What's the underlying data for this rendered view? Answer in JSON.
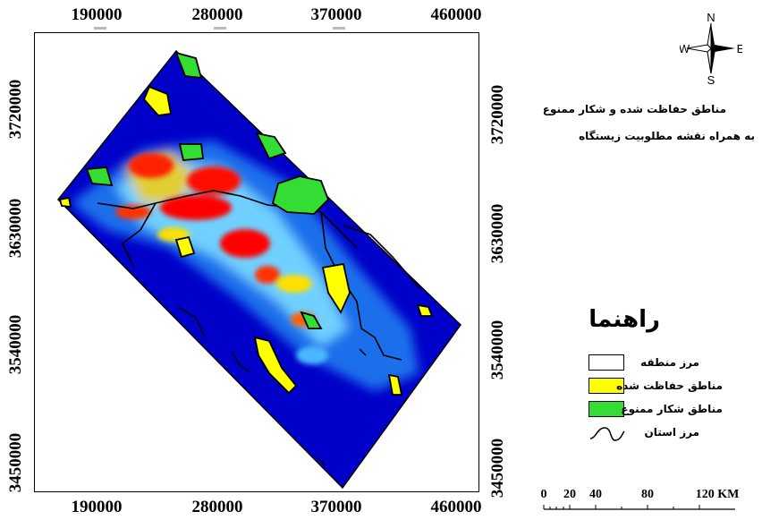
{
  "axes": {
    "x_ticks": [
      "190000",
      "280000",
      "370000",
      "460000"
    ],
    "y_ticks": [
      "3720000",
      "3630000",
      "3540000",
      "3450000"
    ]
  },
  "map": {
    "type": "raster habitat suitability map",
    "raster_colors": [
      "#0000c8",
      "#2ca0ff",
      "#ffff00",
      "#ff0000"
    ],
    "protected_color": "#ffff00",
    "nohunting_color": "#33dd33"
  },
  "north_arrow": {
    "n": "N",
    "s": "S",
    "e": "E",
    "w": "W"
  },
  "title": {
    "line1": "مناطق حفاظت شده و شکار ممنوع",
    "line2": "به همراه نقشه مطلوبیت زیستگاه"
  },
  "legend": {
    "title": "راهنما",
    "items": [
      {
        "label": "مرز منطقه",
        "color": "#ffffff",
        "kind": "box"
      },
      {
        "label": "مناطق حفاظت شده",
        "color": "#ffff00",
        "kind": "box"
      },
      {
        "label": "مناطق شکار ممنوع",
        "color": "#33dd33",
        "kind": "box"
      },
      {
        "label": "مرز استان",
        "color": "#000000",
        "kind": "line"
      }
    ]
  },
  "scale_bar": {
    "labels": [
      "0",
      "20",
      "40",
      "80",
      "120 KM"
    ]
  }
}
